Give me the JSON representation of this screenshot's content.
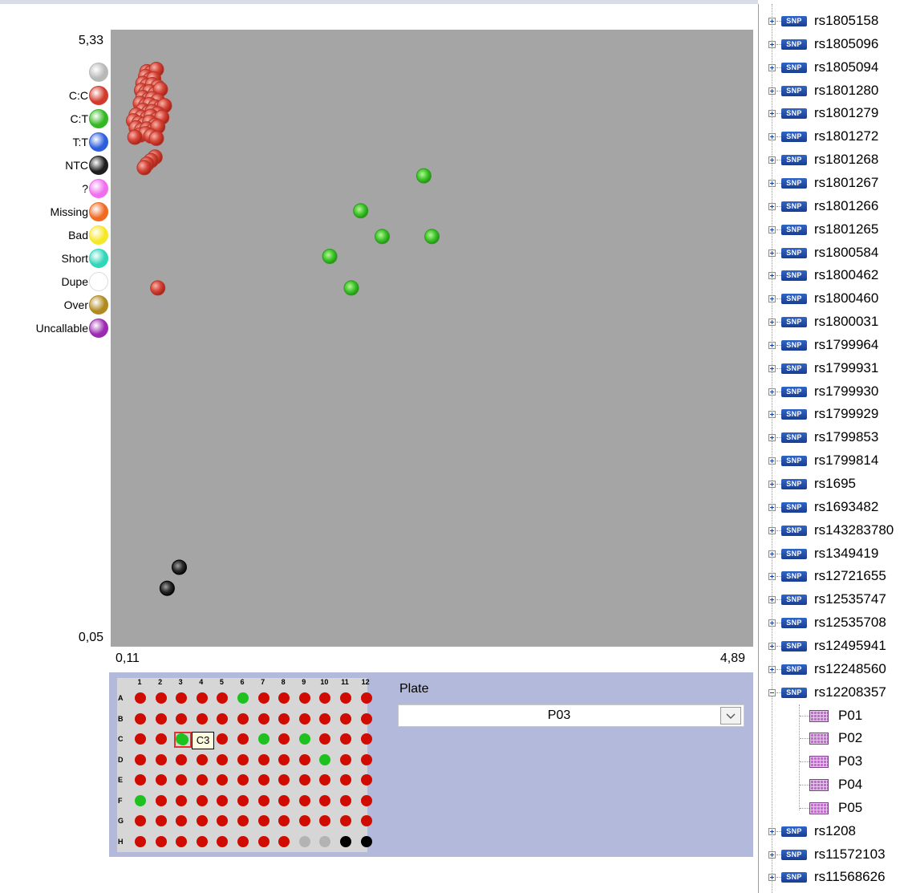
{
  "axes": {
    "y_max": "5,33",
    "y_min": "0,05",
    "x_min": "0,11",
    "x_max": "4,89"
  },
  "legend": [
    {
      "label": "",
      "color": "#b8b8b8"
    },
    {
      "label": "C:C",
      "color": "#d23a2c"
    },
    {
      "label": "C:T",
      "color": "#33b821"
    },
    {
      "label": "T:T",
      "color": "#2d5fdc"
    },
    {
      "label": "NTC",
      "color": "#1e1e1e"
    },
    {
      "label": "?",
      "color": "#f06ef0"
    },
    {
      "label": "Missing",
      "color": "#f06a22"
    },
    {
      "label": "Bad",
      "color": "#f5e82a"
    },
    {
      "label": "Short",
      "color": "#2fd6b8"
    },
    {
      "label": "Dupe",
      "color": "#ffffff"
    },
    {
      "label": "Over",
      "color": "#b08a20"
    },
    {
      "label": "Uncallable",
      "color": "#9a2ab0"
    }
  ],
  "chart_data": {
    "type": "scatter",
    "xlim": [
      0.11,
      4.89
    ],
    "ylim": [
      0.05,
      5.33
    ],
    "series": [
      {
        "name": "C:C",
        "color": "#d0382b",
        "points": [
          [
            0.38,
            4.97
          ],
          [
            0.41,
            4.96
          ],
          [
            0.45,
            4.99
          ],
          [
            0.37,
            4.93
          ],
          [
            0.4,
            4.9
          ],
          [
            0.43,
            4.91
          ],
          [
            0.35,
            4.87
          ],
          [
            0.38,
            4.85
          ],
          [
            0.42,
            4.86
          ],
          [
            0.46,
            4.84
          ],
          [
            0.34,
            4.81
          ],
          [
            0.37,
            4.79
          ],
          [
            0.4,
            4.8
          ],
          [
            0.44,
            4.78
          ],
          [
            0.48,
            4.82
          ],
          [
            0.35,
            4.75
          ],
          [
            0.39,
            4.73
          ],
          [
            0.42,
            4.74
          ],
          [
            0.46,
            4.72
          ],
          [
            0.33,
            4.7
          ],
          [
            0.37,
            4.68
          ],
          [
            0.4,
            4.69
          ],
          [
            0.44,
            4.67
          ],
          [
            0.48,
            4.66
          ],
          [
            0.51,
            4.68
          ],
          [
            0.35,
            4.64
          ],
          [
            0.39,
            4.62
          ],
          [
            0.42,
            4.63
          ],
          [
            0.46,
            4.61
          ],
          [
            0.3,
            4.6
          ],
          [
            0.34,
            4.58
          ],
          [
            0.38,
            4.57
          ],
          [
            0.41,
            4.59
          ],
          [
            0.45,
            4.56
          ],
          [
            0.49,
            4.58
          ],
          [
            0.28,
            4.55
          ],
          [
            0.32,
            4.53
          ],
          [
            0.36,
            4.52
          ],
          [
            0.4,
            4.54
          ],
          [
            0.44,
            4.51
          ],
          [
            0.3,
            4.49
          ],
          [
            0.34,
            4.47
          ],
          [
            0.38,
            4.48
          ],
          [
            0.42,
            4.46
          ],
          [
            0.46,
            4.5
          ],
          [
            0.33,
            4.43
          ],
          [
            0.37,
            4.44
          ],
          [
            0.41,
            4.42
          ],
          [
            0.45,
            4.4
          ],
          [
            0.29,
            4.41
          ],
          [
            0.44,
            4.24
          ],
          [
            0.41,
            4.21
          ],
          [
            0.38,
            4.18
          ],
          [
            0.36,
            4.15
          ],
          [
            0.46,
            3.12
          ],
          [
            2.44,
            4.08
          ],
          [
            1.97,
            3.78
          ],
          [
            2.13,
            3.56
          ],
          [
            2.5,
            3.56
          ],
          [
            1.74,
            3.39
          ],
          [
            1.9,
            3.12
          ],
          [
            0.62,
            0.73
          ],
          [
            0.53,
            0.55
          ]
        ]
      }
    ]
  },
  "plate": {
    "columns": [
      "1",
      "2",
      "3",
      "4",
      "5",
      "6",
      "7",
      "8",
      "9",
      "10",
      "11",
      "12"
    ],
    "rows": [
      "A",
      "B",
      "C",
      "D",
      "E",
      "F",
      "G",
      "H"
    ],
    "wells": {
      "A": [
        "r",
        "r",
        "r",
        "r",
        "r",
        "g",
        "r",
        "r",
        "r",
        "r",
        "r",
        "r"
      ],
      "B": [
        "r",
        "r",
        "r",
        "r",
        "r",
        "r",
        "r",
        "r",
        "r",
        "r",
        "r",
        "r"
      ],
      "C": [
        "r",
        "r",
        "g",
        "",
        "r",
        "r",
        "g",
        "r",
        "g",
        "r",
        "r",
        "r"
      ],
      "D": [
        "r",
        "r",
        "r",
        "r",
        "r",
        "r",
        "r",
        "r",
        "r",
        "g",
        "r",
        "r"
      ],
      "E": [
        "r",
        "r",
        "r",
        "r",
        "r",
        "r",
        "r",
        "r",
        "r",
        "r",
        "r",
        "r"
      ],
      "F": [
        "g",
        "r",
        "r",
        "r",
        "r",
        "r",
        "r",
        "r",
        "r",
        "r",
        "r",
        "r"
      ],
      "G": [
        "r",
        "r",
        "r",
        "r",
        "r",
        "r",
        "r",
        "r",
        "r",
        "r",
        "r",
        "r"
      ],
      "H": [
        "r",
        "r",
        "r",
        "r",
        "r",
        "r",
        "r",
        "r",
        "s",
        "s",
        "k",
        "k"
      ]
    },
    "tooltip": "C3",
    "label": "Plate",
    "selected": "P03"
  },
  "tree": {
    "items": [
      "rs1805158",
      "rs1805096",
      "rs1805094",
      "rs1801280",
      "rs1801279",
      "rs1801272",
      "rs1801268",
      "rs1801267",
      "rs1801266",
      "rs1801265",
      "rs1800584",
      "rs1800462",
      "rs1800460",
      "rs1800031",
      "rs1799964",
      "rs1799931",
      "rs1799930",
      "rs1799929",
      "rs1799853",
      "rs1799814",
      "rs1695",
      "rs1693482",
      "rs143283780",
      "rs1349419",
      "rs12721655",
      "rs12535747",
      "rs12535708",
      "rs12495941",
      "rs12248560",
      "rs12208357"
    ],
    "expanded_children": [
      "P01",
      "P02",
      "P03",
      "P04",
      "P05"
    ],
    "after": [
      "rs1208",
      "rs11572103",
      "rs11568626"
    ],
    "icon_text": "SNP"
  }
}
